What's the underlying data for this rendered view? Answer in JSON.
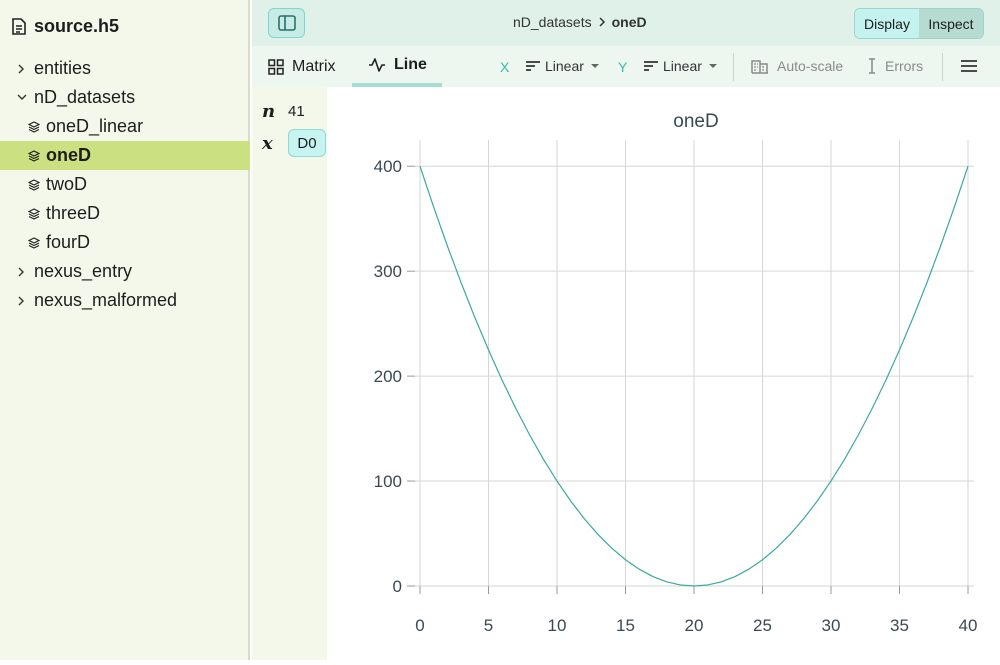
{
  "sidebar": {
    "title": "source.h5",
    "items": [
      {
        "label": "entities",
        "kind": "group",
        "expanded": false
      },
      {
        "label": "nD_datasets",
        "kind": "group",
        "expanded": true
      },
      {
        "label": "oneD_linear",
        "kind": "dataset"
      },
      {
        "label": "oneD",
        "kind": "dataset",
        "selected": true
      },
      {
        "label": "twoD",
        "kind": "dataset"
      },
      {
        "label": "threeD",
        "kind": "dataset"
      },
      {
        "label": "fourD",
        "kind": "dataset"
      },
      {
        "label": "nexus_entry",
        "kind": "group",
        "expanded": false
      },
      {
        "label": "nexus_malformed",
        "kind": "group",
        "expanded": false
      }
    ]
  },
  "topbar": {
    "breadcrumb_parent": "nD_datasets",
    "breadcrumb_current": "oneD",
    "mode_display": "Display",
    "mode_inspect": "Inspect"
  },
  "toolbar": {
    "tab_matrix": "Matrix",
    "tab_line": "Line",
    "x_label": "X",
    "x_scale": "Linear",
    "y_label": "Y",
    "y_scale": "Linear",
    "autoscale": "Auto-scale",
    "errors": "Errors"
  },
  "dims": {
    "n_label": "n",
    "n_value": "41",
    "x_label": "x",
    "x_value": "D0"
  },
  "chart_data": {
    "type": "line",
    "title": "oneD",
    "xlabel": "",
    "ylabel": "",
    "x": [
      0,
      1,
      2,
      3,
      4,
      5,
      6,
      7,
      8,
      9,
      10,
      11,
      12,
      13,
      14,
      15,
      16,
      17,
      18,
      19,
      20,
      21,
      22,
      23,
      24,
      25,
      26,
      27,
      28,
      29,
      30,
      31,
      32,
      33,
      34,
      35,
      36,
      37,
      38,
      39,
      40
    ],
    "series": [
      {
        "values": [
          400,
          361,
          324,
          289,
          256,
          225,
          196,
          169,
          144,
          121,
          100,
          81,
          64,
          49,
          36,
          25,
          16,
          9,
          4,
          1,
          0,
          1,
          4,
          9,
          16,
          25,
          36,
          49,
          64,
          81,
          100,
          121,
          144,
          169,
          196,
          225,
          256,
          289,
          324,
          361,
          400
        ]
      }
    ],
    "xlim": [
      0,
      40
    ],
    "ylim": [
      0,
      400
    ],
    "x_ticks": [
      0,
      5,
      10,
      15,
      20,
      25,
      30,
      35,
      40
    ],
    "y_ticks": [
      0,
      100,
      200,
      300,
      400
    ],
    "grid": true,
    "line_color": "#3aa99f"
  }
}
